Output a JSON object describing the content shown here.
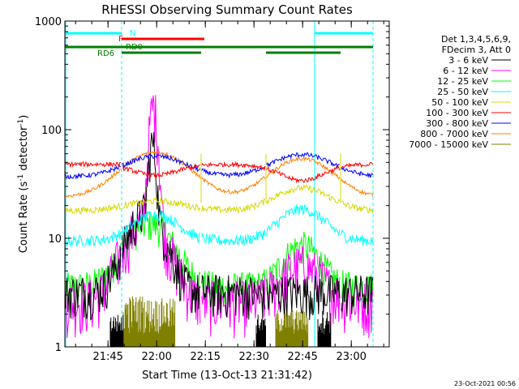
{
  "chart_data": {
    "type": "line",
    "title": "RHESSI Observing Summary Count Rates",
    "xlabel": "Start Time (13-Oct-13 21:31:42)",
    "ylabel_main": "Count Rate (s",
    "ylabel_exp1": "-1",
    "ylabel_mid": " detector",
    "ylabel_exp2": "-1",
    "ylabel_end": ")",
    "yscale": "log",
    "ylim": [
      1,
      1000
    ],
    "xlim_minutes": [
      0,
      100
    ],
    "x_ticks": [
      {
        "label": "21:45",
        "minute": 13.3
      },
      {
        "label": "22:00",
        "minute": 28.3
      },
      {
        "label": "22:15",
        "minute": 43.3
      },
      {
        "label": "22:30",
        "minute": 58.3
      },
      {
        "label": "22:45",
        "minute": 73.3
      },
      {
        "label": "23:00",
        "minute": 88.3
      }
    ],
    "y_ticks": [
      {
        "label": "1",
        "value": 1
      },
      {
        "label": "10",
        "value": 10
      },
      {
        "label": "100",
        "value": 100
      },
      {
        "label": "1000",
        "value": 1000
      }
    ],
    "legend_header": [
      "Det 1,3,4,5,6,9,",
      "FDecim 3, Att 0"
    ],
    "series": [
      {
        "name": "3 - 6 keV",
        "color": "#000000"
      },
      {
        "name": "6 - 12 keV",
        "color": "#ff00ff"
      },
      {
        "name": "12 - 25 keV",
        "color": "#00ff00"
      },
      {
        "name": "25 - 50 keV",
        "color": "#00ffff"
      },
      {
        "name": "50 - 100 keV",
        "color": "#d8d800"
      },
      {
        "name": "100 - 300 keV",
        "color": "#ff0000"
      },
      {
        "name": "300 - 800 keV",
        "color": "#0000ff"
      },
      {
        "name": "800 - 7000 keV",
        "color": "#ff8000"
      },
      {
        "name": "7000 - 15000 keV",
        "color": "#808000"
      }
    ],
    "flag_bars": [
      {
        "label": "N",
        "color": "#00ffff",
        "segments": [
          [
            0,
            17.5
          ],
          [
            77,
            95
          ]
        ]
      },
      {
        "label": "F",
        "color": "#ff0000",
        "segments": [
          [
            17.5,
            43
          ]
        ]
      },
      {
        "label": "RD0",
        "color": "#008000",
        "segments": [
          [
            0,
            17.5
          ],
          [
            17.5,
            42
          ],
          [
            42,
            62
          ],
          [
            62,
            85
          ],
          [
            85,
            95
          ]
        ]
      },
      {
        "label": "RD6",
        "color": "#008000",
        "segments": []
      }
    ],
    "timestamp": "23-Oct-2021 00:56"
  }
}
